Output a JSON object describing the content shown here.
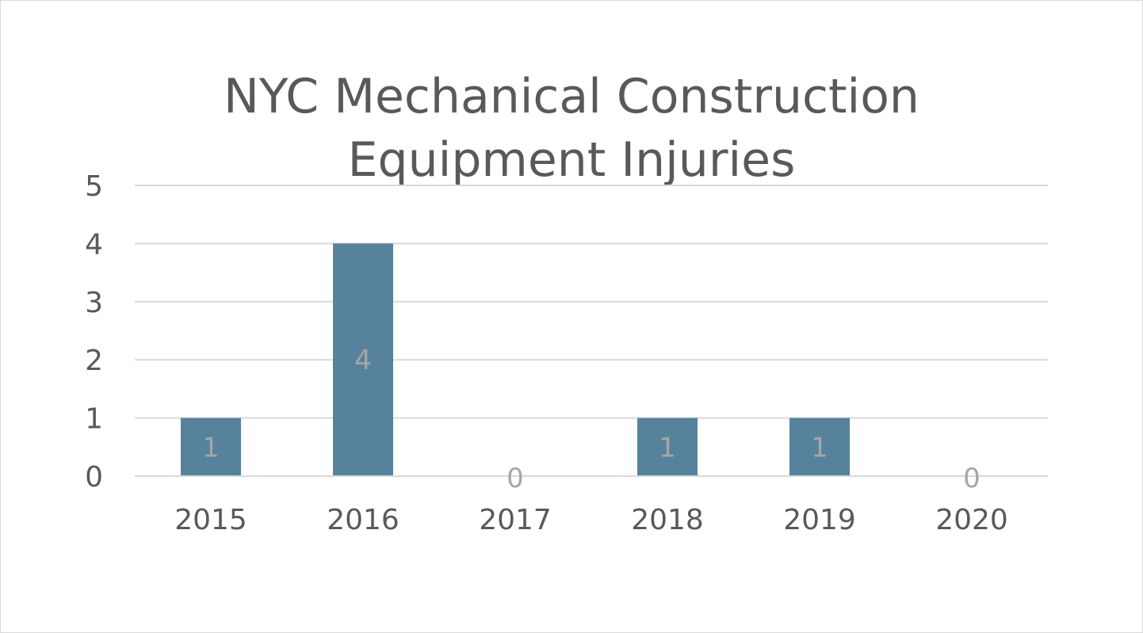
{
  "chart_data": {
    "type": "bar",
    "title": "NYC Mechanical Construction\nEquipment Injuries",
    "categories": [
      "2015",
      "2016",
      "2017",
      "2018",
      "2019",
      "2020"
    ],
    "values": [
      1,
      4,
      0,
      1,
      1,
      0
    ],
    "data_labels": [
      "1",
      "4",
      "0",
      "1",
      "1",
      "0"
    ],
    "y_ticks": [
      "0",
      "1",
      "2",
      "3",
      "4",
      "5"
    ],
    "ylim": [
      0,
      5
    ],
    "xlabel": "",
    "ylabel": "",
    "grid": true,
    "legend": "none",
    "bar_color": "#56839b",
    "label_color": "#a6a6a6"
  }
}
